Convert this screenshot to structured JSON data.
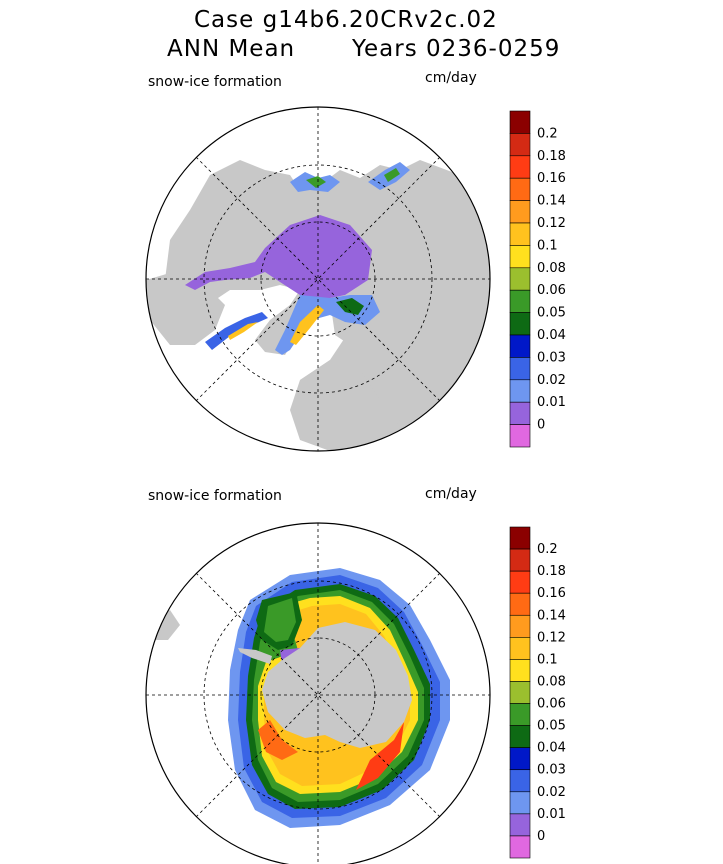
{
  "header": {
    "line1": "Case g14b6.20CRv2c.02",
    "line2_left": "ANN Mean",
    "line2_right": "Years 0236-0259"
  },
  "panels": [
    {
      "label": "snow-ice formation",
      "unit": "cm/day",
      "hemisphere": "north"
    },
    {
      "label": "snow-ice formation",
      "unit": "cm/day",
      "hemisphere": "south"
    }
  ],
  "colorbar": {
    "levels": [
      "0.2",
      "0.18",
      "0.16",
      "0.14",
      "0.12",
      "0.1",
      "0.08",
      "0.06",
      "0.05",
      "0.04",
      "0.03",
      "0.02",
      "0.01",
      "0"
    ],
    "colors": [
      "#8b0000",
      "#d42a14",
      "#ff3c14",
      "#ff6a14",
      "#ff9b1e",
      "#ffc21e",
      "#ffe01e",
      "#9bbf2e",
      "#3a9a28",
      "#0e6a14",
      "#0018c8",
      "#3a64e6",
      "#6e96f0",
      "#9664dc",
      "#e068e0"
    ]
  },
  "colors": {
    "land": "#c8c8c8",
    "ocean": "#ffffff",
    "frame": "#000000"
  }
}
